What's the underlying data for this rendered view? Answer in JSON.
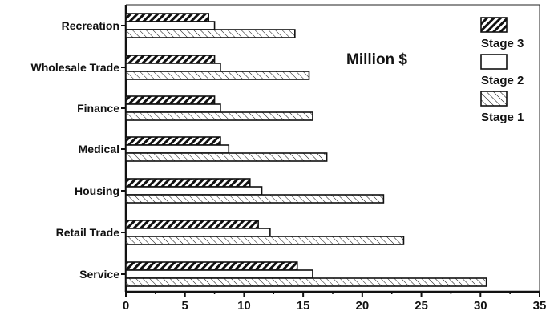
{
  "chart_data": {
    "type": "bar",
    "orientation": "horizontal",
    "annotation": "Million $",
    "categories": [
      "Recreation",
      "Wholesale Trade",
      "Finance",
      "Medical",
      "Housing",
      "Retail Trade",
      "Service"
    ],
    "series": [
      {
        "name": "Stage 3",
        "values": [
          7.0,
          7.5,
          7.5,
          8.0,
          10.5,
          11.2,
          14.5
        ],
        "pattern": "dense-diagonal"
      },
      {
        "name": "Stage 2",
        "values": [
          7.5,
          8.0,
          8.0,
          8.7,
          11.5,
          12.2,
          15.8
        ],
        "pattern": "plain"
      },
      {
        "name": "Stage 1",
        "values": [
          14.3,
          15.5,
          15.8,
          17.0,
          21.8,
          23.5,
          30.5
        ],
        "pattern": "light-diagonal"
      }
    ],
    "xlim": [
      0,
      35
    ],
    "xticks": [
      "0",
      "5",
      "10",
      "15",
      "20",
      "25",
      "30",
      "35"
    ],
    "legend_position": "top-right",
    "grid": false,
    "colors": {
      "bar_fill": "#ffffff",
      "bar_stroke": "#111111",
      "hatch": "#111111"
    }
  }
}
